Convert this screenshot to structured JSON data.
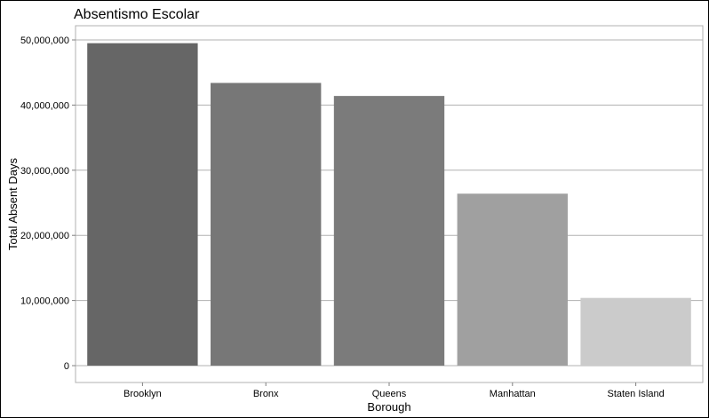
{
  "chart_data": {
    "type": "bar",
    "title": "Absentismo Escolar",
    "xlabel": "Borough",
    "ylabel": "Total Absent Days",
    "categories": [
      "Brooklyn",
      "Bronx",
      "Queens",
      "Manhattan",
      "Staten Island"
    ],
    "values": [
      49500000,
      43400000,
      41400000,
      26400000,
      10400000
    ],
    "bar_colors": [
      "#666666",
      "#777777",
      "#7b7b7b",
      "#a0a0a0",
      "#cbcbcb"
    ],
    "ylim": [
      0,
      50000000
    ],
    "yticks": [
      0,
      10000000,
      20000000,
      30000000,
      40000000,
      50000000
    ],
    "ytick_labels": [
      "0",
      "10,000,000",
      "20,000,000",
      "30,000,000",
      "40,000,000",
      "50,000,000"
    ],
    "grid": "horizontal",
    "legend": "none"
  }
}
